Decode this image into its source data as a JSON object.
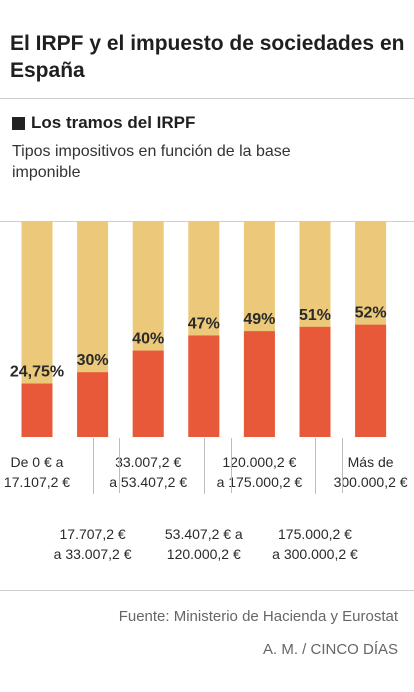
{
  "header": {
    "title": "El IRPF y el impuesto de sociedades en España",
    "subtitle": "Los tramos del IRPF",
    "description": "Tipos impositivos en función de la base imponible"
  },
  "chart_data": {
    "type": "bar",
    "stacked_background": true,
    "ylim": [
      0,
      100
    ],
    "categories": [
      "De 0 € a 17.107,2 €",
      "17.707,2 € a 33.007,2 €",
      "33.007,2 € a 53.407,2 €",
      "53.407,2 € a 120.000,2 €",
      "120.000,2 € a 175.000,2 €",
      "175.000,2 € a 300.000,2 €",
      "Más de 300.000,2 €"
    ],
    "values": [
      24.75,
      30,
      40,
      47,
      49,
      51,
      52
    ],
    "value_labels": [
      "24,75%",
      "30%",
      "40%",
      "47%",
      "49%",
      "51%",
      "52%"
    ],
    "colors": {
      "rate": "#e8593a",
      "remainder": "#ecc97a"
    },
    "grid": false
  },
  "footer": {
    "source": "Fuente: Ministerio de Hacienda y Eurostat",
    "credit": "A. M. / CINCO DÍAS"
  }
}
